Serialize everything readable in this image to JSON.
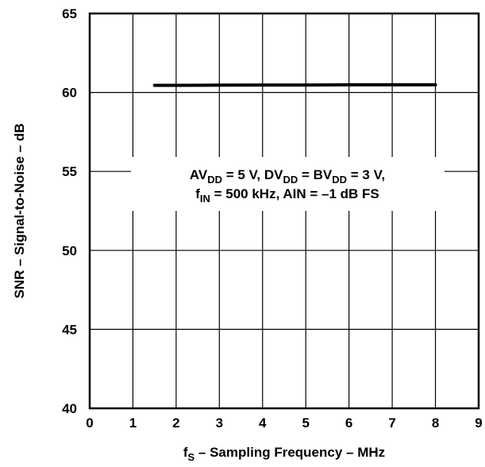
{
  "chart_data": {
    "type": "line",
    "xlabel": {
      "main": "f",
      "sub": "S",
      "rest": " – Sampling Frequency – MHz"
    },
    "ylabel": "SNR – Signal-to-Noise – dB",
    "xlim": [
      0,
      9
    ],
    "ylim": [
      40,
      65
    ],
    "xticks": [
      "0",
      "1",
      "2",
      "3",
      "4",
      "5",
      "6",
      "7",
      "8",
      "9"
    ],
    "yticks": [
      "40",
      "45",
      "50",
      "55",
      "60",
      "65"
    ],
    "grid": true,
    "series": [
      {
        "x": [
          1.5,
          2,
          3,
          4,
          5,
          6,
          7,
          8
        ],
        "y": [
          60.45,
          60.45,
          60.46,
          60.47,
          60.47,
          60.48,
          60.48,
          60.48
        ],
        "color": "#000000"
      }
    ],
    "annotation": {
      "line1": [
        {
          "t": "AV"
        },
        {
          "t": "DD",
          "sub": true
        },
        {
          "t": " = 5 V, DV"
        },
        {
          "t": "DD",
          "sub": true
        },
        {
          "t": " = BV"
        },
        {
          "t": "DD",
          "sub": true
        },
        {
          "t": " = 3 V,"
        }
      ],
      "line2": [
        {
          "t": "f"
        },
        {
          "t": "IN",
          "sub": true
        },
        {
          "t": " = 500 kHz, AIN = –1 dB FS"
        }
      ]
    }
  }
}
